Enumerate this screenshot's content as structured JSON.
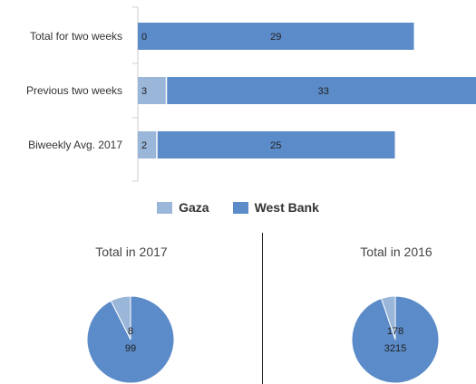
{
  "colors": {
    "gaza": "#9ab6d9",
    "west_bank": "#5b8bc8",
    "axis": "#cccccc"
  },
  "legend": {
    "gaza": "Gaza",
    "west_bank": "West Bank"
  },
  "chart_data": [
    {
      "type": "bar",
      "orientation": "horizontal",
      "stacked": true,
      "categories": [
        "Total for two weeks",
        "Previous two weeks",
        "Biweekly Avg. 2017"
      ],
      "series": [
        {
          "name": "Gaza",
          "values": [
            0,
            3,
            2
          ]
        },
        {
          "name": "West Bank",
          "values": [
            29,
            33,
            25
          ]
        }
      ],
      "xlim": [
        0,
        36
      ],
      "legend_position": "bottom-center",
      "grid": false
    },
    {
      "type": "pie",
      "title": "Total in 2017",
      "labels": [
        "Gaza",
        "West Bank"
      ],
      "values": [
        8,
        99
      ]
    },
    {
      "type": "pie",
      "title": "Total in 2016",
      "labels": [
        "Gaza",
        "West Bank"
      ],
      "values": [
        178,
        3215
      ]
    }
  ]
}
